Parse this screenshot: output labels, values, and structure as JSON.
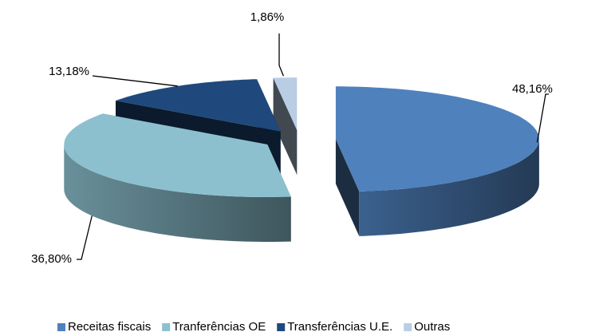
{
  "chart_data": {
    "type": "pie",
    "categories": [
      "Receitas fiscais",
      "Tranferências OE",
      "Transferências U.E.",
      "Outras"
    ],
    "values": [
      48.16,
      36.8,
      13.18,
      1.86
    ],
    "value_labels": [
      "48,16%",
      "36,80%",
      "13,18%",
      "1,86%"
    ],
    "colors": [
      "#4f81bd",
      "#8cc0cf",
      "#1f497d",
      "#b9cde5"
    ],
    "legend": "bottom"
  }
}
